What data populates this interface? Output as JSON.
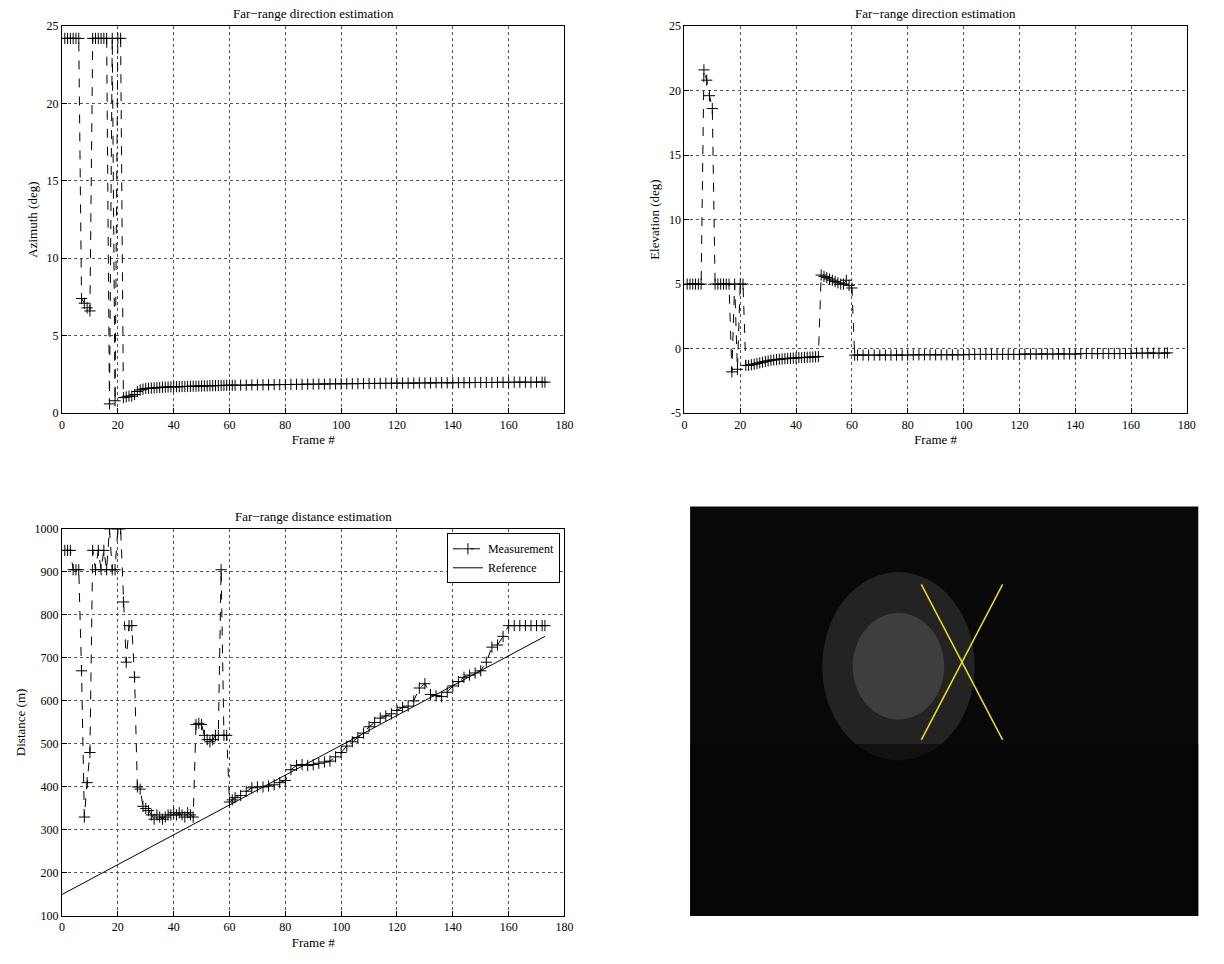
{
  "chart_data": [
    {
      "type": "line",
      "title": "Far−range direction estimation",
      "xlabel": "Frame #",
      "ylabel": "Azimuth (deg)",
      "xlim": [
        0,
        180
      ],
      "xticks": [
        0,
        20,
        40,
        60,
        80,
        100,
        120,
        140,
        160,
        180
      ],
      "ylim": [
        0,
        25
      ],
      "yticks": [
        0,
        5,
        10,
        15,
        20,
        25
      ],
      "grid": true,
      "x": [
        1,
        2,
        3,
        4,
        5,
        6,
        7,
        8,
        9,
        10,
        11,
        12,
        13,
        14,
        15,
        16,
        17,
        18,
        19,
        20,
        21,
        22,
        23,
        24,
        25,
        26,
        27,
        28,
        29,
        30,
        31,
        32,
        33,
        34,
        35,
        36,
        37,
        38,
        39,
        40,
        41,
        42,
        43,
        44,
        45,
        46,
        47,
        48,
        49,
        50,
        51,
        52,
        53,
        54,
        55,
        56,
        57,
        58,
        59,
        60,
        61,
        62,
        64,
        66,
        68,
        70,
        72,
        74,
        76,
        78,
        80,
        82,
        84,
        86,
        88,
        90,
        92,
        94,
        96,
        98,
        100,
        102,
        104,
        106,
        108,
        110,
        112,
        114,
        116,
        118,
        120,
        122,
        124,
        126,
        128,
        130,
        132,
        134,
        136,
        138,
        140,
        142,
        144,
        146,
        148,
        150,
        152,
        154,
        156,
        158,
        160,
        162,
        164,
        166,
        168,
        170,
        172,
        173
      ],
      "series": [
        {
          "color": "#000000",
          "marker": "plus",
          "line_style": "dashed",
          "values": [
            24.2,
            24.2,
            24.2,
            24.2,
            24.2,
            24.2,
            7.4,
            7.1,
            6.8,
            6.6,
            24.2,
            24.2,
            24.2,
            24.2,
            24.2,
            24.2,
            0.6,
            24.2,
            0.8,
            24.2,
            24.2,
            1.0,
            1.05,
            1.1,
            1.1,
            1.2,
            1.4,
            1.5,
            1.55,
            1.6,
            1.6,
            1.62,
            1.63,
            1.65,
            1.66,
            1.67,
            1.68,
            1.69,
            1.7,
            1.7,
            1.71,
            1.71,
            1.72,
            1.72,
            1.73,
            1.73,
            1.74,
            1.74,
            1.75,
            1.75,
            1.76,
            1.76,
            1.77,
            1.77,
            1.78,
            1.78,
            1.79,
            1.79,
            1.8,
            1.8,
            1.8,
            1.8,
            1.81,
            1.81,
            1.82,
            1.82,
            1.83,
            1.83,
            1.84,
            1.84,
            1.85,
            1.85,
            1.86,
            1.86,
            1.87,
            1.87,
            1.88,
            1.88,
            1.89,
            1.89,
            1.9,
            1.9,
            1.9,
            1.91,
            1.91,
            1.92,
            1.92,
            1.92,
            1.93,
            1.93,
            1.93,
            1.94,
            1.94,
            1.94,
            1.95,
            1.95,
            1.95,
            1.96,
            1.96,
            1.96,
            1.96,
            1.97,
            1.97,
            1.97,
            1.98,
            1.98,
            1.98,
            1.98,
            1.99,
            1.99,
            1.99,
            2.0,
            2.0,
            2.0,
            2.0,
            2.0,
            2.0,
            2.0
          ]
        }
      ]
    },
    {
      "type": "line",
      "title": "Far−range direction estimation",
      "xlabel": "Frame #",
      "ylabel": "Elevation (deg)",
      "xlim": [
        0,
        180
      ],
      "xticks": [
        0,
        20,
        40,
        60,
        80,
        100,
        120,
        140,
        160,
        180
      ],
      "ylim": [
        -5,
        25
      ],
      "yticks": [
        -5,
        0,
        5,
        10,
        15,
        20,
        25
      ],
      "grid": true,
      "x": [
        1,
        2,
        3,
        4,
        5,
        6,
        7,
        8,
        9,
        10,
        11,
        12,
        13,
        14,
        15,
        16,
        17,
        18,
        19,
        20,
        21,
        22,
        23,
        24,
        25,
        26,
        27,
        28,
        29,
        30,
        31,
        32,
        33,
        34,
        35,
        36,
        37,
        38,
        39,
        40,
        41,
        42,
        43,
        44,
        45,
        46,
        47,
        48,
        49,
        50,
        51,
        52,
        53,
        54,
        55,
        56,
        57,
        58,
        59,
        60,
        61,
        62,
        64,
        66,
        68,
        70,
        72,
        74,
        76,
        78,
        80,
        82,
        84,
        86,
        88,
        90,
        92,
        94,
        96,
        98,
        100,
        102,
        104,
        106,
        108,
        110,
        112,
        114,
        116,
        118,
        120,
        122,
        124,
        126,
        128,
        130,
        132,
        134,
        136,
        138,
        140,
        142,
        144,
        146,
        148,
        150,
        152,
        154,
        156,
        158,
        160,
        162,
        164,
        166,
        168,
        170,
        172,
        173
      ],
      "series": [
        {
          "color": "#000000",
          "marker": "plus",
          "line_style": "dashed",
          "values": [
            5,
            5,
            5,
            5,
            5,
            5,
            21.6,
            20.8,
            19.6,
            18.6,
            5,
            5,
            5,
            5,
            5,
            5,
            -1.8,
            5,
            -1.6,
            5,
            5,
            -1.3,
            -1.3,
            -1.25,
            -1.2,
            -1.15,
            -1.1,
            -1.05,
            -1.0,
            -0.95,
            -0.9,
            -0.88,
            -0.85,
            -0.82,
            -0.8,
            -0.78,
            -0.76,
            -0.75,
            -0.73,
            -0.72,
            -0.7,
            -0.7,
            -0.68,
            -0.67,
            -0.66,
            -0.65,
            -0.63,
            -0.62,
            5.7,
            5.6,
            5.5,
            5.4,
            5.3,
            5.2,
            5.1,
            5.0,
            5.0,
            5.3,
            4.9,
            4.7,
            -0.5,
            -0.5,
            -0.5,
            -0.5,
            -0.5,
            -0.5,
            -0.5,
            -0.5,
            -0.5,
            -0.5,
            -0.5,
            -0.48,
            -0.48,
            -0.48,
            -0.48,
            -0.48,
            -0.48,
            -0.48,
            -0.48,
            -0.48,
            -0.48,
            -0.45,
            -0.45,
            -0.45,
            -0.45,
            -0.45,
            -0.45,
            -0.45,
            -0.45,
            -0.45,
            -0.45,
            -0.42,
            -0.42,
            -0.42,
            -0.42,
            -0.42,
            -0.42,
            -0.42,
            -0.42,
            -0.42,
            -0.42,
            -0.38,
            -0.38,
            -0.38,
            -0.38,
            -0.38,
            -0.38,
            -0.38,
            -0.38,
            -0.38,
            -0.38,
            -0.35,
            -0.35,
            -0.35,
            -0.35,
            -0.35,
            -0.35,
            -0.33
          ]
        }
      ]
    },
    {
      "type": "line",
      "title": "Far−range distance estimation",
      "xlabel": "Frame #",
      "ylabel": "Distance (m)",
      "xlim": [
        0,
        180
      ],
      "xticks": [
        0,
        20,
        40,
        60,
        80,
        100,
        120,
        140,
        160,
        180
      ],
      "ylim": [
        100,
        1000
      ],
      "yticks": [
        100,
        200,
        300,
        400,
        500,
        600,
        700,
        800,
        900,
        1000
      ],
      "grid": true,
      "legend": "upper right",
      "x": [
        1,
        2,
        3,
        4,
        5,
        6,
        7,
        8,
        9,
        10,
        11,
        12,
        13,
        14,
        15,
        16,
        17,
        18,
        19,
        20,
        21,
        22,
        23,
        24,
        25,
        26,
        27,
        28,
        29,
        30,
        31,
        32,
        33,
        34,
        35,
        36,
        37,
        38,
        39,
        40,
        41,
        42,
        43,
        44,
        45,
        46,
        47,
        48,
        49,
        50,
        51,
        52,
        53,
        54,
        55,
        56,
        57,
        58,
        59,
        60,
        61,
        62,
        64,
        66,
        68,
        70,
        72,
        74,
        76,
        78,
        80,
        82,
        84,
        86,
        88,
        90,
        92,
        94,
        96,
        98,
        100,
        102,
        104,
        106,
        108,
        110,
        112,
        114,
        116,
        118,
        120,
        122,
        124,
        126,
        128,
        130,
        132,
        134,
        136,
        138,
        140,
        142,
        144,
        146,
        148,
        150,
        152,
        154,
        156,
        158,
        160,
        162,
        164,
        166,
        168,
        170,
        172,
        173
      ],
      "series": [
        {
          "name": "Measurement",
          "color": "#000000",
          "marker": "plus",
          "line_style": "dashed",
          "values": [
            950,
            950,
            950,
            905,
            905,
            905,
            670,
            330,
            410,
            480,
            950,
            905,
            950,
            905,
            950,
            905,
            1000,
            905,
            905,
            1000,
            1000,
            830,
            690,
            775,
            775,
            655,
            400,
            395,
            355,
            350,
            345,
            335,
            325,
            335,
            330,
            325,
            330,
            335,
            335,
            340,
            335,
            340,
            335,
            330,
            340,
            335,
            330,
            545,
            548,
            545,
            520,
            510,
            505,
            510,
            520,
            520,
            905,
            520,
            520,
            365,
            370,
            375,
            380,
            390,
            398,
            400,
            400,
            402,
            405,
            410,
            415,
            440,
            450,
            452,
            450,
            452,
            455,
            458,
            460,
            470,
            480,
            495,
            505,
            515,
            525,
            540,
            550,
            560,
            565,
            570,
            578,
            585,
            588,
            600,
            630,
            640,
            615,
            612,
            610,
            620,
            635,
            645,
            655,
            660,
            665,
            670,
            690,
            725,
            730,
            750,
            775,
            775,
            775,
            775,
            775,
            775,
            775,
            775
          ]
        },
        {
          "name": "Reference",
          "color": "#000000",
          "line_style": "solid",
          "x": [
            0,
            173
          ],
          "values": [
            150,
            750
          ]
        }
      ]
    }
  ]
}
